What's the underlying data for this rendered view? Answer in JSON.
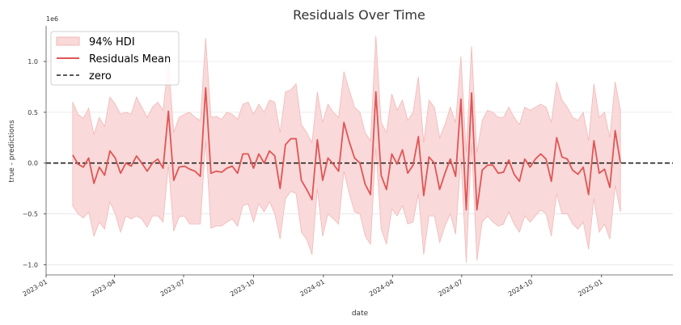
{
  "chart_data": {
    "type": "line",
    "title": "Residuals Over Time",
    "xlabel": "date",
    "ylabel": "true - predictions",
    "y_scale_label": "1e6",
    "ylim": [
      -1.1,
      1.35
    ],
    "xlim": [
      "2023-01-01",
      "2025-04-05"
    ],
    "yticks": [
      -1.0,
      -0.5,
      0.0,
      0.5,
      1.0
    ],
    "ytick_labels": [
      "−1.0",
      "−0.5",
      "0.0",
      "0.5",
      "1.0"
    ],
    "xticks": [
      "2023-01-01",
      "2023-04-01",
      "2023-07-01",
      "2023-10-01",
      "2024-01-01",
      "2024-04-01",
      "2024-07-01",
      "2024-10-01",
      "2025-01-01"
    ],
    "xtick_labels": [
      "2023-01",
      "2023-04",
      "2023-07",
      "2023-10",
      "2024-01",
      "2024-04",
      "2024-07",
      "2024-10",
      "2025-01"
    ],
    "grid": "y",
    "legend_placement": "top-left",
    "legend": {
      "hdi_label": "94% HDI",
      "mean_label": "Residuals Mean",
      "zero_label": "zero"
    },
    "colors": {
      "mean_line": "#e05555",
      "hdi_fill": "#f9d9d9",
      "hdi_edge": "#f2b8b8",
      "zero_line": "#222222",
      "grid": "#e6e6e6",
      "axis": "#555555"
    },
    "start_date": "2023-02-05",
    "step_days": 7,
    "series": [
      {
        "name": "Residuals Mean",
        "values": [
          0.08,
          -0.01,
          -0.04,
          0.05,
          -0.2,
          -0.04,
          -0.12,
          0.12,
          0.05,
          -0.1,
          0.0,
          -0.03,
          0.07,
          0.0,
          -0.08,
          0.0,
          0.04,
          -0.05,
          0.51,
          -0.17,
          -0.04,
          -0.03,
          -0.06,
          -0.08,
          -0.13,
          0.74,
          -0.1,
          -0.08,
          -0.09,
          -0.05,
          -0.03,
          -0.1,
          0.09,
          0.09,
          -0.05,
          0.09,
          0.0,
          0.12,
          0.07,
          -0.25,
          0.18,
          0.24,
          0.24,
          -0.17,
          -0.26,
          -0.36,
          0.23,
          -0.17,
          0.05,
          -0.01,
          -0.08,
          0.4,
          0.21,
          0.05,
          0.0,
          -0.21,
          -0.31,
          0.7,
          -0.12,
          -0.26,
          0.09,
          -0.01,
          0.13,
          -0.1,
          -0.02,
          0.26,
          -0.32,
          0.06,
          0.0,
          -0.26,
          -0.1,
          0.04,
          -0.13,
          0.63,
          -0.46,
          0.69,
          -0.46,
          -0.07,
          -0.02,
          -0.02,
          -0.1,
          -0.09,
          0.03,
          -0.11,
          -0.18,
          0.04,
          -0.04,
          0.04,
          0.09,
          0.04,
          -0.18,
          0.25,
          0.06,
          0.04,
          -0.07,
          -0.11,
          -0.04,
          -0.31,
          0.22,
          -0.1,
          -0.06,
          -0.24,
          0.32,
          0.0
        ]
      },
      {
        "name": "94% HDI",
        "upper": [
          0.6,
          0.48,
          0.44,
          0.54,
          0.28,
          0.45,
          0.36,
          0.65,
          0.58,
          0.48,
          0.5,
          0.48,
          0.65,
          0.55,
          0.45,
          0.55,
          0.6,
          0.52,
          1.0,
          0.3,
          0.45,
          0.48,
          0.5,
          0.45,
          0.42,
          1.23,
          0.45,
          0.46,
          0.43,
          0.5,
          0.48,
          0.43,
          0.58,
          0.6,
          0.48,
          0.58,
          0.5,
          0.62,
          0.6,
          0.3,
          0.7,
          0.72,
          0.78,
          0.38,
          0.3,
          0.2,
          0.7,
          0.4,
          0.58,
          0.5,
          0.45,
          0.9,
          0.72,
          0.55,
          0.5,
          0.3,
          0.22,
          1.25,
          0.4,
          0.3,
          0.68,
          0.52,
          0.62,
          0.42,
          0.5,
          0.85,
          0.2,
          0.62,
          0.55,
          0.25,
          0.38,
          0.55,
          0.4,
          1.05,
          0.1,
          1.15,
          0.1,
          0.42,
          0.52,
          0.5,
          0.45,
          0.45,
          0.55,
          0.45,
          0.38,
          0.55,
          0.52,
          0.55,
          0.58,
          0.55,
          0.4,
          0.8,
          0.62,
          0.55,
          0.45,
          0.42,
          0.5,
          0.22,
          0.78,
          0.45,
          0.5,
          0.25,
          0.8,
          0.52
        ],
        "lower": [
          -0.42,
          -0.5,
          -0.54,
          -0.48,
          -0.72,
          -0.58,
          -0.65,
          -0.38,
          -0.5,
          -0.68,
          -0.52,
          -0.55,
          -0.52,
          -0.55,
          -0.63,
          -0.52,
          -0.52,
          -0.58,
          -0.02,
          -0.67,
          -0.53,
          -0.52,
          -0.6,
          -0.6,
          -0.6,
          0.22,
          -0.64,
          -0.62,
          -0.62,
          -0.58,
          -0.55,
          -0.62,
          -0.42,
          -0.4,
          -0.58,
          -0.4,
          -0.48,
          -0.38,
          -0.5,
          -0.75,
          -0.35,
          -0.28,
          -0.3,
          -0.68,
          -0.75,
          -0.9,
          -0.25,
          -0.72,
          -0.5,
          -0.55,
          -0.6,
          -0.08,
          -0.3,
          -0.48,
          -0.5,
          -0.72,
          -0.8,
          0.15,
          -0.65,
          -0.8,
          -0.45,
          -0.52,
          -0.42,
          -0.6,
          -0.58,
          -0.3,
          -0.9,
          -0.52,
          -0.52,
          -0.78,
          -0.62,
          -0.5,
          -0.7,
          0.05,
          -0.98,
          0.2,
          -0.96,
          -0.58,
          -0.52,
          -0.58,
          -0.62,
          -0.6,
          -0.48,
          -0.6,
          -0.68,
          -0.52,
          -0.58,
          -0.52,
          -0.46,
          -0.5,
          -0.72,
          -0.3,
          -0.5,
          -0.5,
          -0.6,
          -0.65,
          -0.58,
          -0.85,
          -0.35,
          -0.68,
          -0.6,
          -0.75,
          -0.22,
          -0.48
        ]
      }
    ]
  }
}
